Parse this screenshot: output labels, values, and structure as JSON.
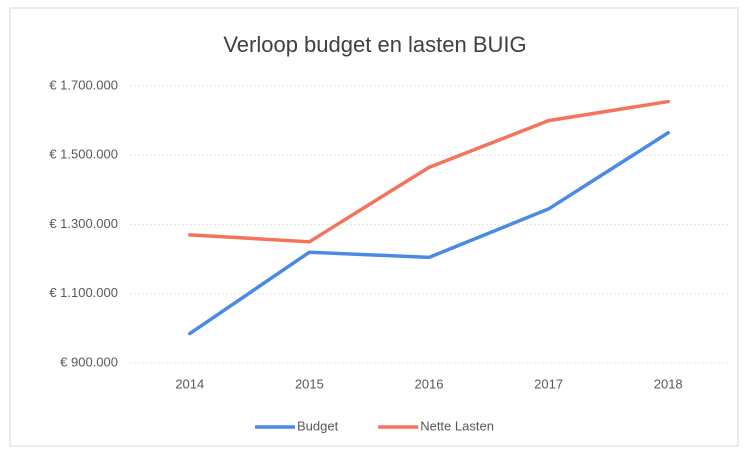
{
  "chart_data": {
    "type": "line",
    "title": "Verloop budget en lasten BUIG",
    "categories": [
      "2014",
      "2015",
      "2016",
      "2017",
      "2018"
    ],
    "series": [
      {
        "name": "Budget",
        "color": "#4a8ae6",
        "values": [
          985000,
          1220000,
          1205000,
          1345000,
          1565000
        ]
      },
      {
        "name": "Nette Lasten",
        "color": "#f4735a",
        "values": [
          1270000,
          1250000,
          1465000,
          1600000,
          1655000
        ]
      }
    ],
    "ylim": [
      900000,
      1700000
    ],
    "yticks": [
      {
        "value": 900000,
        "label": "€ 900.000"
      },
      {
        "value": 1100000,
        "label": "€ 1.100.000"
      },
      {
        "value": 1300000,
        "label": "€ 1.300.000"
      },
      {
        "value": 1500000,
        "label": "€ 1.500.000"
      },
      {
        "value": 1700000,
        "label": "€ 1.700.000"
      }
    ],
    "grid": true,
    "legend": "bottom"
  }
}
